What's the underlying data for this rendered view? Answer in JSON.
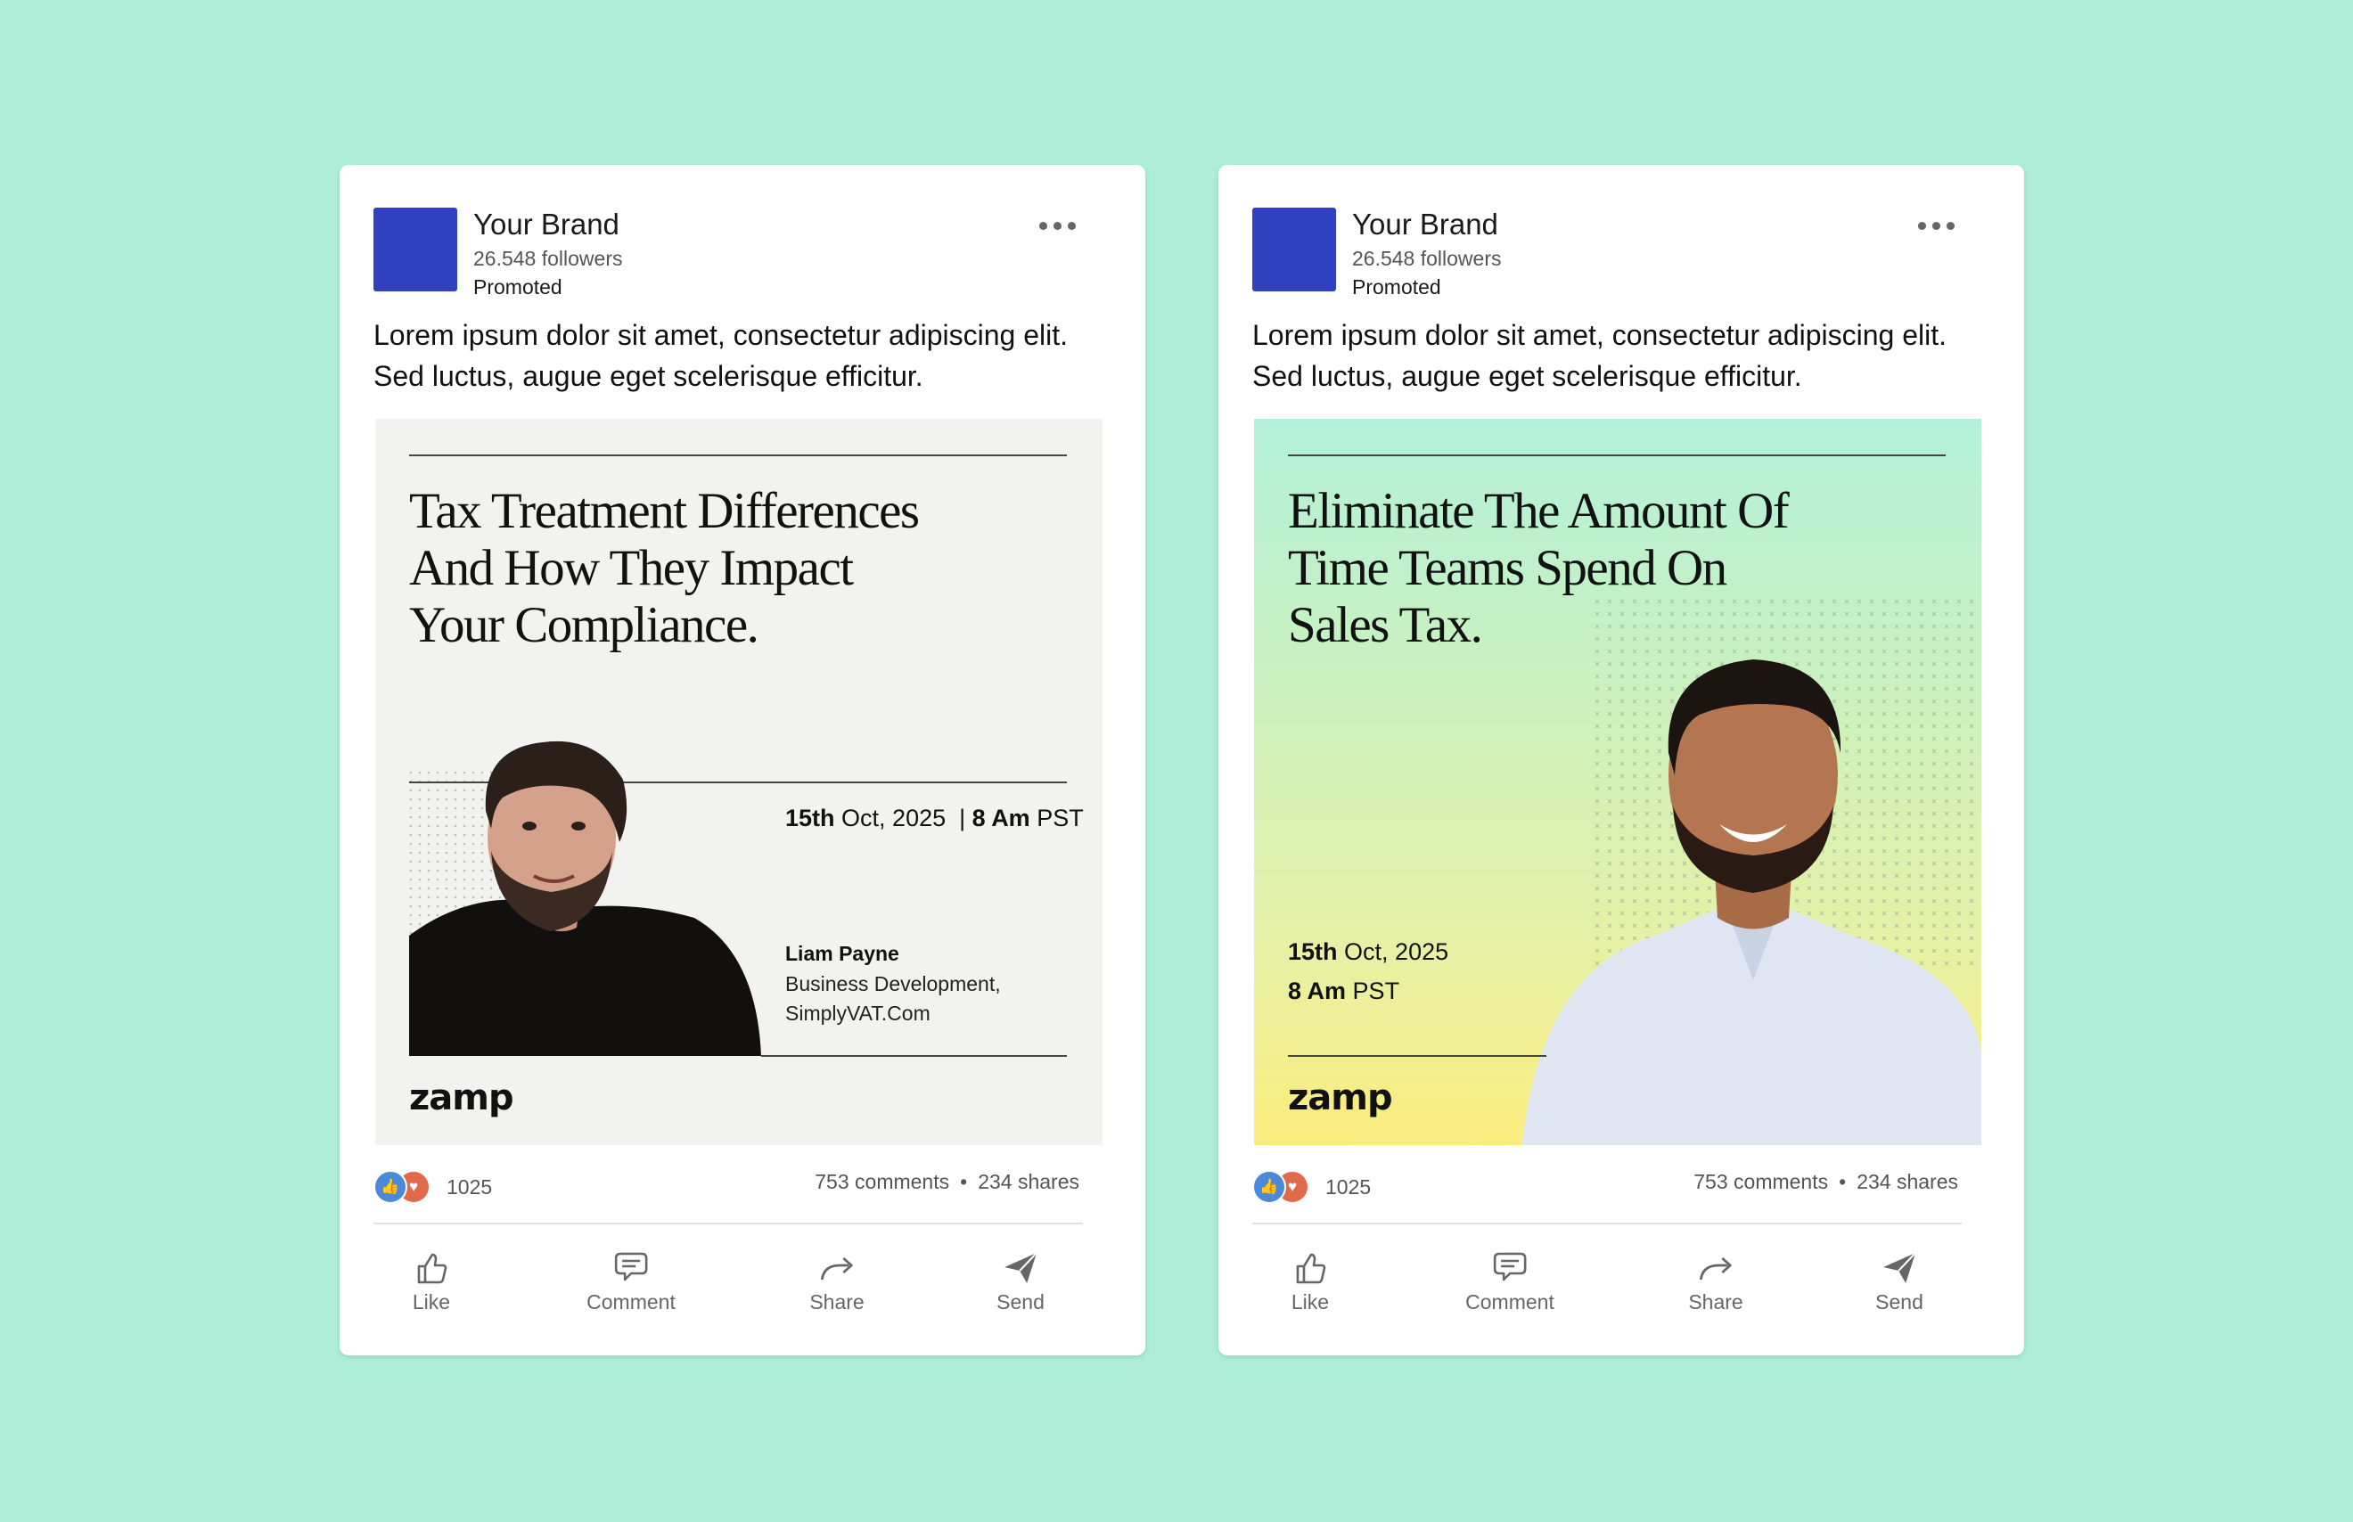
{
  "posts": [
    {
      "brand": "Your Brand",
      "followers": "26.548 followers",
      "promoted": "Promoted",
      "text_lines": [
        "Lorem ipsum dolor sit amet, consectetur adipiscing elit.",
        "Sed luctus, augue eget scelerisque efficitur."
      ],
      "creative": {
        "headline": [
          "Tax Treatment Differences",
          "And How They Impact",
          "Your Compliance."
        ],
        "date_bold": "15th",
        "date_rest": "Oct, 2025",
        "separator": "|",
        "time_bold": "8 Am",
        "time_rest": "PST",
        "speaker_name": "Liam Payne",
        "speaker_role": [
          "Business Development,",
          "SimplyVAT.Com"
        ],
        "brandmark": "zamp"
      },
      "reaction_count": "1025",
      "comments": "753 comments",
      "stats_separator": "•",
      "shares": "234 shares",
      "actions": [
        "Like",
        "Comment",
        "Share",
        "Send"
      ]
    },
    {
      "brand": "Your Brand",
      "followers": "26.548 followers",
      "promoted": "Promoted",
      "text_lines": [
        "Lorem ipsum dolor sit amet, consectetur adipiscing elit.",
        "Sed luctus, augue eget scelerisque efficitur."
      ],
      "creative": {
        "headline": [
          "Eliminate The Amount Of",
          "Time Teams Spend On",
          "Sales Tax."
        ],
        "date_bold": "15th",
        "date_rest": "Oct, 2025",
        "time_bold": "8 Am",
        "time_rest": "PST",
        "brandmark": "zamp"
      },
      "reaction_count": "1025",
      "comments": "753 comments",
      "stats_separator": "•",
      "shares": "234 shares",
      "actions": [
        "Like",
        "Comment",
        "Share",
        "Send"
      ]
    }
  ],
  "colors": {
    "background": "#aeeed9",
    "logo": "#3041c0",
    "creative_left_bg": "#f2f2f0",
    "creative_right_gradient": [
      "#b2f1d9",
      "#fbec7c"
    ],
    "like": "#4a8ad8",
    "love": "#df6a4c"
  }
}
